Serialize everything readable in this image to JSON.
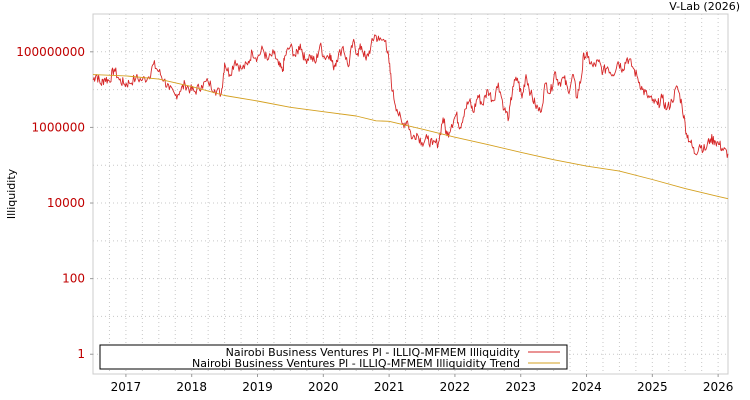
{
  "chart_data": {
    "type": "line",
    "credit": "V-Lab (2026)",
    "ylabel": "Illiquidity",
    "yscale": "log",
    "ylim": [
      0.3,
      1000000000
    ],
    "yticks": [
      {
        "value": 1,
        "label": "1"
      },
      {
        "value": 100,
        "label": "100"
      },
      {
        "value": 10000,
        "label": "10000"
      },
      {
        "value": 1000000,
        "label": "1000000"
      },
      {
        "value": 100000000,
        "label": "100000000"
      }
    ],
    "xlim": [
      2016.5,
      2026.15
    ],
    "xticks": [
      {
        "value": 2017,
        "label": "2017"
      },
      {
        "value": 2018,
        "label": "2018"
      },
      {
        "value": 2019,
        "label": "2019"
      },
      {
        "value": 2020,
        "label": "2020"
      },
      {
        "value": 2021,
        "label": "2021"
      },
      {
        "value": 2022,
        "label": "2022"
      },
      {
        "value": 2023,
        "label": "2023"
      },
      {
        "value": 2024,
        "label": "2024"
      },
      {
        "value": 2025,
        "label": "2025"
      },
      {
        "value": 2026,
        "label": "2026"
      }
    ],
    "colors": {
      "illiquidity": "#d62728",
      "trend": "#d4a020",
      "tick_label": "#c00000"
    },
    "series": [
      {
        "name": "Nairobi Business Ventures Pl - ILLIQ-MFMEM Illiquidity",
        "key": "illiquidity",
        "points": [
          [
            2016.5,
            18000000
          ],
          [
            2016.55,
            25000000
          ],
          [
            2016.62,
            14000000
          ],
          [
            2016.68,
            20000000
          ],
          [
            2016.75,
            17000000
          ],
          [
            2016.82,
            35000000
          ],
          [
            2016.9,
            18000000
          ],
          [
            2016.98,
            14000000
          ],
          [
            2017.05,
            15000000
          ],
          [
            2017.15,
            20000000
          ],
          [
            2017.25,
            18000000
          ],
          [
            2017.35,
            22000000
          ],
          [
            2017.42,
            47000000
          ],
          [
            2017.5,
            30000000
          ],
          [
            2017.58,
            18000000
          ],
          [
            2017.66,
            10000000
          ],
          [
            2017.75,
            7000000
          ],
          [
            2017.82,
            9000000
          ],
          [
            2017.9,
            14000000
          ],
          [
            2017.98,
            10000000
          ],
          [
            2018.05,
            9000000
          ],
          [
            2018.15,
            13000000
          ],
          [
            2018.25,
            16000000
          ],
          [
            2018.35,
            10000000
          ],
          [
            2018.45,
            8000000
          ],
          [
            2018.5,
            50000000
          ],
          [
            2018.58,
            25000000
          ],
          [
            2018.66,
            60000000
          ],
          [
            2018.75,
            35000000
          ],
          [
            2018.85,
            45000000
          ],
          [
            2018.92,
            100000000
          ],
          [
            2019.0,
            70000000
          ],
          [
            2019.08,
            120000000
          ],
          [
            2019.15,
            60000000
          ],
          [
            2019.25,
            90000000
          ],
          [
            2019.32,
            45000000
          ],
          [
            2019.38,
            30000000
          ],
          [
            2019.42,
            80000000
          ],
          [
            2019.5,
            140000000
          ],
          [
            2019.58,
            75000000
          ],
          [
            2019.65,
            160000000
          ],
          [
            2019.72,
            60000000
          ],
          [
            2019.8,
            80000000
          ],
          [
            2019.88,
            50000000
          ],
          [
            2019.95,
            150000000
          ],
          [
            2020.02,
            70000000
          ],
          [
            2020.1,
            90000000
          ],
          [
            2020.15,
            40000000
          ],
          [
            2020.2,
            60000000
          ],
          [
            2020.3,
            140000000
          ],
          [
            2020.38,
            40000000
          ],
          [
            2020.45,
            180000000
          ],
          [
            2020.52,
            90000000
          ],
          [
            2020.58,
            140000000
          ],
          [
            2020.65,
            60000000
          ],
          [
            2020.72,
            130000000
          ],
          [
            2020.78,
            280000000
          ],
          [
            2020.85,
            200000000
          ],
          [
            2020.95,
            200000000
          ],
          [
            2021.0,
            50000000
          ],
          [
            2021.05,
            9000000
          ],
          [
            2021.12,
            3000000
          ],
          [
            2021.2,
            1200000
          ],
          [
            2021.28,
            1500000
          ],
          [
            2021.35,
            500000
          ],
          [
            2021.42,
            700000
          ],
          [
            2021.5,
            400000
          ],
          [
            2021.58,
            500000
          ],
          [
            2021.66,
            350000
          ],
          [
            2021.75,
            400000
          ],
          [
            2021.82,
            1800000
          ],
          [
            2021.88,
            600000
          ],
          [
            2021.95,
            1200000
          ],
          [
            2022.02,
            2200000
          ],
          [
            2022.08,
            1000000
          ],
          [
            2022.15,
            3000000
          ],
          [
            2022.22,
            5000000
          ],
          [
            2022.28,
            2500000
          ],
          [
            2022.35,
            7000000
          ],
          [
            2022.42,
            4000000
          ],
          [
            2022.5,
            10000000
          ],
          [
            2022.58,
            5000000
          ],
          [
            2022.66,
            15000000
          ],
          [
            2022.75,
            3000000
          ],
          [
            2022.82,
            1800000
          ],
          [
            2022.88,
            12000000
          ],
          [
            2022.95,
            20000000
          ],
          [
            2023.02,
            6000000
          ],
          [
            2023.08,
            25000000
          ],
          [
            2023.15,
            8000000
          ],
          [
            2023.22,
            4000000
          ],
          [
            2023.3,
            2500000
          ],
          [
            2023.38,
            15000000
          ],
          [
            2023.45,
            8000000
          ],
          [
            2023.52,
            30000000
          ],
          [
            2023.58,
            15000000
          ],
          [
            2023.66,
            20000000
          ],
          [
            2023.72,
            9000000
          ],
          [
            2023.8,
            25000000
          ],
          [
            2023.85,
            6000000
          ],
          [
            2023.92,
            20000000
          ],
          [
            2023.96,
            90000000
          ],
          [
            2024.02,
            70000000
          ],
          [
            2024.1,
            40000000
          ],
          [
            2024.18,
            55000000
          ],
          [
            2024.25,
            30000000
          ],
          [
            2024.32,
            40000000
          ],
          [
            2024.4,
            25000000
          ],
          [
            2024.48,
            55000000
          ],
          [
            2024.55,
            35000000
          ],
          [
            2024.62,
            70000000
          ],
          [
            2024.7,
            40000000
          ],
          [
            2024.78,
            20000000
          ],
          [
            2024.85,
            10000000
          ],
          [
            2024.92,
            7000000
          ],
          [
            2025.0,
            5000000
          ],
          [
            2025.08,
            4000000
          ],
          [
            2025.15,
            6000000
          ],
          [
            2025.22,
            3000000
          ],
          [
            2025.3,
            5000000
          ],
          [
            2025.38,
            12000000
          ],
          [
            2025.45,
            4000000
          ],
          [
            2025.52,
            700000
          ],
          [
            2025.58,
            400000
          ],
          [
            2025.65,
            200000
          ],
          [
            2025.72,
            350000
          ],
          [
            2025.8,
            250000
          ],
          [
            2025.88,
            500000
          ],
          [
            2025.95,
            450000
          ],
          [
            2026.02,
            350000
          ],
          [
            2026.08,
            250000
          ],
          [
            2026.15,
            200000
          ]
        ]
      },
      {
        "name": "Nairobi Business Ventures Pl - ILLIQ-MFMEM Illiquidity Trend",
        "key": "trend",
        "points": [
          [
            2016.5,
            25000000
          ],
          [
            2017.0,
            23000000
          ],
          [
            2017.5,
            19000000
          ],
          [
            2018.0,
            12000000
          ],
          [
            2018.5,
            7000000
          ],
          [
            2019.0,
            5000000
          ],
          [
            2019.5,
            3400000
          ],
          [
            2020.0,
            2600000
          ],
          [
            2020.5,
            2000000
          ],
          [
            2020.8,
            1500000
          ],
          [
            2021.0,
            1450000
          ],
          [
            2021.5,
            900000
          ],
          [
            2022.0,
            550000
          ],
          [
            2022.5,
            350000
          ],
          [
            2023.0,
            220000
          ],
          [
            2023.5,
            140000
          ],
          [
            2024.0,
            95000
          ],
          [
            2024.5,
            70000
          ],
          [
            2025.0,
            42000
          ],
          [
            2025.5,
            24000
          ],
          [
            2026.0,
            15000
          ],
          [
            2026.15,
            13000
          ]
        ]
      }
    ]
  }
}
